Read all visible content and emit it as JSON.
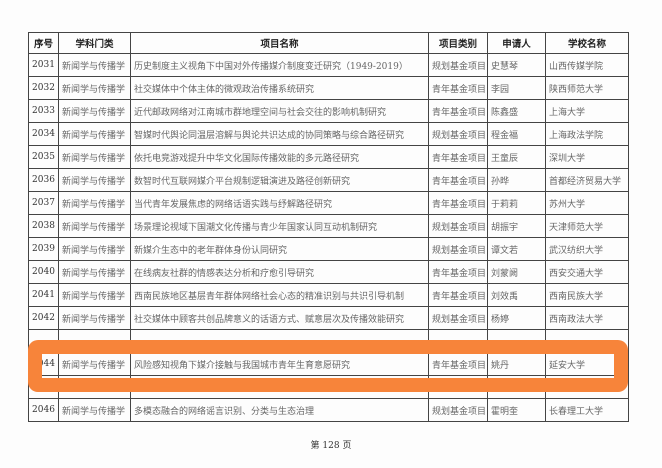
{
  "table": {
    "headers": [
      "序号",
      "学科门类",
      "项目名称",
      "项目类别",
      "申请人",
      "学校名称"
    ],
    "rows": [
      [
        "2031",
        "新闻学与传播学",
        "历史制度主义视角下中国对外传播媒介制度变迁研究（1949-2019）",
        "规划基金项目",
        "史慧琴",
        "山西传媒学院"
      ],
      [
        "2032",
        "新闻学与传播学",
        "社交媒体中个体主体的微观政治传播系统研究",
        "青年基金项目",
        "李园",
        "陕西师范大学"
      ],
      [
        "2033",
        "新闻学与传播学",
        "近代邮政网络对江南城市群地理空间与社会交往的影响机制研究",
        "青年基金项目",
        "陈鑫盛",
        "上海大学"
      ],
      [
        "2034",
        "新闻学与传播学",
        "智媒时代舆论同温层溶解与舆论共识达成的协同策略与综合路径研究",
        "规划基金项目",
        "程金福",
        "上海政法学院"
      ],
      [
        "2035",
        "新闻学与传播学",
        "依托电竞游戏提升中华文化国际传播效能的多元路径研究",
        "青年基金项目",
        "王童辰",
        "深圳大学"
      ],
      [
        "2036",
        "新闻学与传播学",
        "数智时代互联网媒介平台规制逻辑演进及路径创新研究",
        "青年基金项目",
        "孙晔",
        "首都经济贸易大学"
      ],
      [
        "2037",
        "新闻学与传播学",
        "当代青年发展焦虑的网络话语实践与纾解路径研究",
        "青年基金项目",
        "于莉莉",
        "苏州大学"
      ],
      [
        "2038",
        "新闻学与传播学",
        "场景理论视域下国潮文化传播与青少年国家认同互动机制研究",
        "规划基金项目",
        "胡振宇",
        "天津师范大学"
      ],
      [
        "2039",
        "新闻学与传播学",
        "新媒介生态中的老年群体身份认同研究",
        "规划基金项目",
        "谭文若",
        "武汉纺织大学"
      ],
      [
        "2040",
        "新闻学与传播学",
        "在线病友社群的情感表达分析和疗愈引导研究",
        "青年基金项目",
        "刘蒙阙",
        "西安交通大学"
      ],
      [
        "2041",
        "新闻学与传播学",
        "西南民族地区基层青年群体网络社会心态的精准识别与共识引导机制",
        "青年基金项目",
        "刘效禹",
        "西南民族大学"
      ],
      [
        "2042",
        "新闻学与传播学",
        "社交媒体中顾客共创品牌意义的话语方式、赋意层次及传播效能研究",
        "规划基金项目",
        "杨婷",
        "西南政法大学"
      ],
      [
        "",
        "",
        "",
        "",
        "",
        ""
      ],
      [
        "2044",
        "新闻学与传播学",
        "风险感知视角下媒介接触与我国城市青年生育意愿研究",
        "青年基金项目",
        "姚丹",
        "延安大学"
      ],
      [
        "",
        "",
        "",
        "",
        "",
        ""
      ],
      [
        "2046",
        "新闻学与传播学",
        "多模态融合的网络谣言识别、分类与生态治理",
        "规划基金项目",
        "霍明奎",
        "长春理工大学"
      ]
    ]
  },
  "highlight": {
    "color": "#f7843a",
    "row": "2044"
  },
  "footer": "第 128 页"
}
